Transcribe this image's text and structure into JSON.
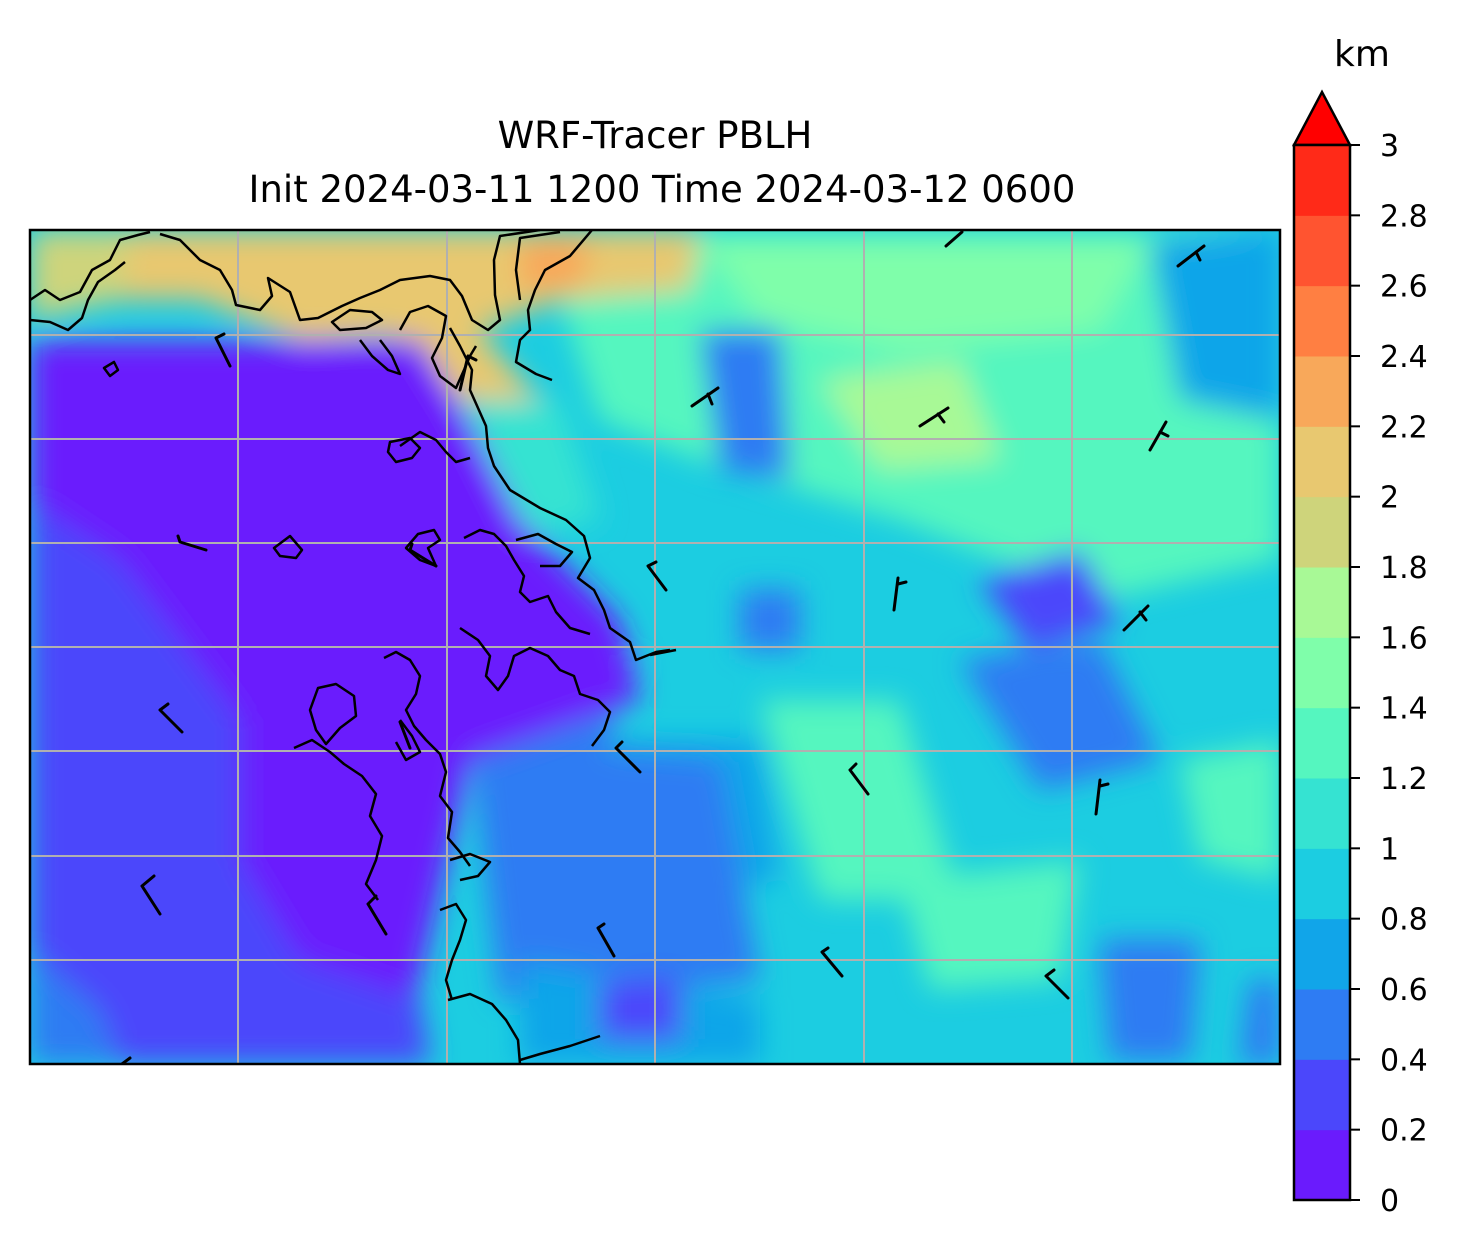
{
  "title_line1": "WRF-Tracer PBLH",
  "title_line2": "Init 2024-03-11 1200 Time 2024-03-12 0600",
  "colorbar": {
    "unit": "km",
    "extend": "max",
    "tick_labels": [
      "0",
      "0.2",
      "0.4",
      "0.6",
      "0.8",
      "1",
      "1.2",
      "1.4",
      "1.6",
      "1.8",
      "2",
      "2.2",
      "2.4",
      "2.6",
      "2.8",
      "3"
    ],
    "levels": [
      0,
      0.2,
      0.4,
      0.6,
      0.8,
      1.0,
      1.2,
      1.4,
      1.6,
      1.8,
      2.0,
      2.2,
      2.4,
      2.6,
      2.8,
      3.0
    ],
    "colors": [
      "#6a1bfd",
      "#4b47fb",
      "#2e7cf3",
      "#11a5e9",
      "#1ccde1",
      "#35e3d2",
      "#55f6bf",
      "#7ffeaa",
      "#a8f996",
      "#ced47b",
      "#e8c870",
      "#f8a85a",
      "#ff7f42",
      "#ff5430",
      "#ff2a18"
    ],
    "over_color": "#ff0000"
  },
  "map": {
    "field": "PBLH",
    "gridlines": true,
    "grid_color": "#b0b0b0",
    "coastline_color": "#000000"
  }
}
